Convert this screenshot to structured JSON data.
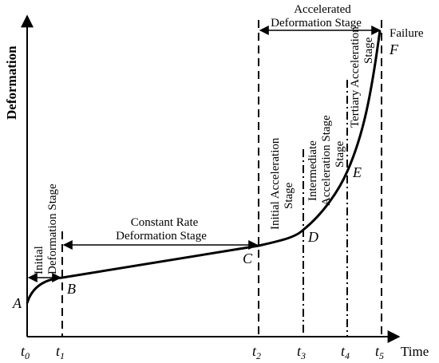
{
  "axes": {
    "y_label": "Deformation",
    "x_label": "Time"
  },
  "ticks": [
    {
      "base": "t",
      "sub": "0"
    },
    {
      "base": "t",
      "sub": "1"
    },
    {
      "base": "t",
      "sub": "2"
    },
    {
      "base": "t",
      "sub": "3"
    },
    {
      "base": "t",
      "sub": "4"
    },
    {
      "base": "t",
      "sub": "5"
    }
  ],
  "points": {
    "A": "A",
    "B": "B",
    "C": "C",
    "D": "D",
    "E": "E",
    "F": "F"
  },
  "failure_label": "Failure",
  "stages": {
    "initial_deformation": [
      "Initial",
      "Deformation Stage"
    ],
    "constant_rate": [
      "Constant Rate",
      "Deformation Stage"
    ],
    "accelerated": [
      "Accelerated",
      "Deformation Stage"
    ],
    "initial_acceleration": [
      "Initial Acceleration",
      "Stage"
    ],
    "intermediate_acceleration": [
      "Intermediate",
      "Acceleration Stage",
      "Stage"
    ],
    "tertiary_acceleration": [
      "Tertiary Acceleration",
      "Stage"
    ]
  }
}
